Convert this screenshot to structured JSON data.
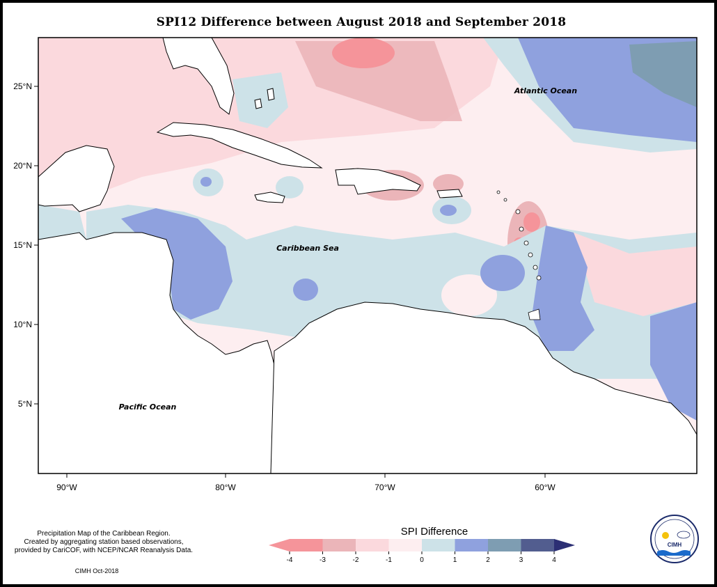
{
  "title": "SPI12 Difference between August 2018 and September 2018",
  "labels": {
    "atlantic": "Atlantic Ocean",
    "caribbean": "Caribbean Sea",
    "pacific": "Pacific Ocean"
  },
  "axes": {
    "lat_ticks": [
      "25°N",
      "20°N",
      "15°N",
      "10°N",
      "5°N"
    ],
    "lon_ticks": [
      "90°W",
      "80°W",
      "70°W",
      "60°W"
    ]
  },
  "legend": {
    "title": "SPI Difference",
    "ticks": [
      "-4",
      "-3",
      "-2",
      "-1",
      "0",
      "1",
      "2",
      "3",
      "4"
    ],
    "colors": [
      "#f5949a",
      "#ebb5b9",
      "#fbd9dd",
      "#fdeef0",
      "#cde2e8",
      "#8fa1de",
      "#7e9db2",
      "#525d8f",
      "#2c2f74"
    ]
  },
  "credits": {
    "line1": "Precipitation Map of the Caribbean Region.",
    "line2": "Created by aggregating station based observations,",
    "line3": "provided by CariCOF, with NCEP/NCAR Reanalysis Data.",
    "line4": "CIMH Oct-2018"
  },
  "logo": {
    "text": "CIMH"
  }
}
